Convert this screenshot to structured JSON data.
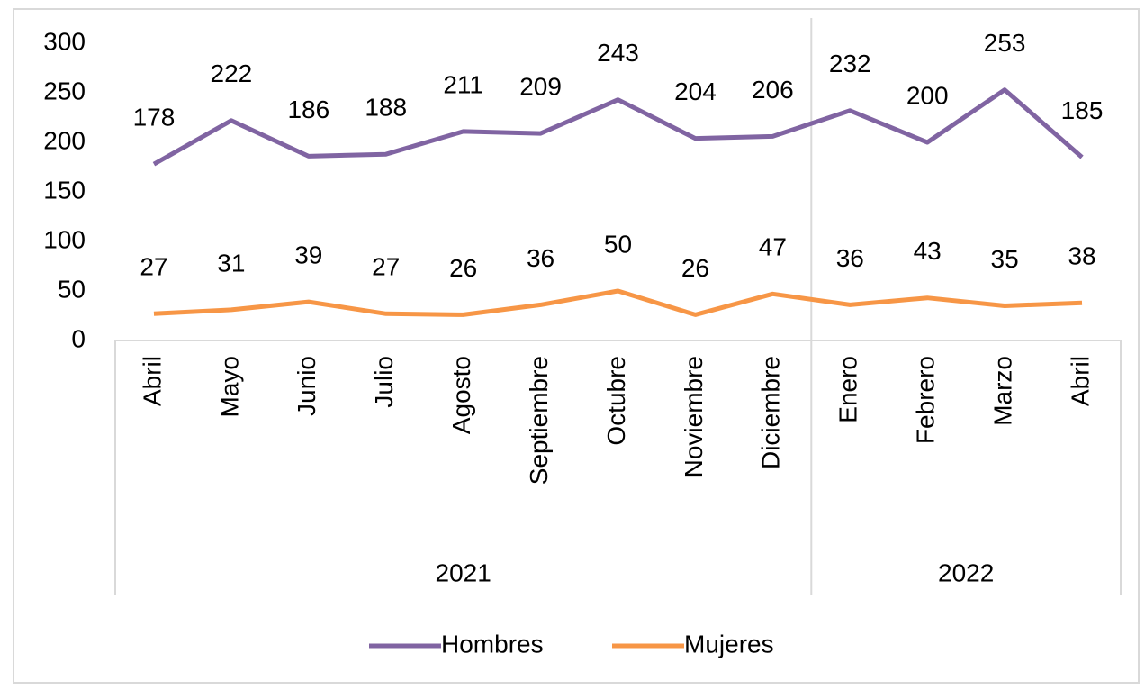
{
  "chart_data": {
    "type": "line",
    "groups": [
      {
        "name": "2021",
        "categories": [
          "Abril",
          "Mayo",
          "Junio",
          "Julio",
          "Agosto",
          "Septiembre",
          "Octubre",
          "Noviembre",
          "Diciembre"
        ]
      },
      {
        "name": "2022",
        "categories": [
          "Enero",
          "Febrero",
          "Marzo",
          "Abril"
        ]
      }
    ],
    "series": [
      {
        "name": "Hombres",
        "color": "#8064a2",
        "values": [
          178,
          222,
          186,
          188,
          211,
          209,
          243,
          204,
          206,
          232,
          200,
          253,
          185
        ]
      },
      {
        "name": "Mujeres",
        "color": "#f79646",
        "values": [
          27,
          31,
          39,
          27,
          26,
          36,
          50,
          26,
          47,
          36,
          43,
          35,
          38
        ]
      }
    ],
    "ylim": [
      0,
      300
    ],
    "yticks": [
      0,
      50,
      100,
      150,
      200,
      250,
      300
    ],
    "grid": false,
    "legend": "bottom"
  }
}
